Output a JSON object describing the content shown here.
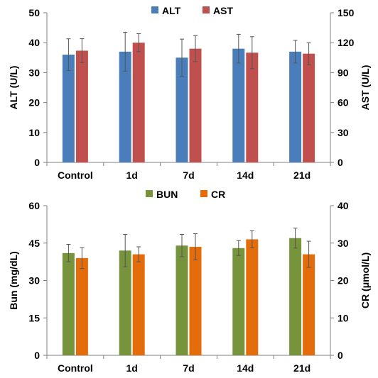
{
  "chart_data": [
    {
      "type": "bar",
      "categories": [
        "Control",
        "1d",
        "7d",
        "14d",
        "21d"
      ],
      "series": [
        {
          "name": "ALT",
          "axis": "left",
          "color": "#4a7ebb",
          "values": [
            36,
            37,
            35,
            38,
            37
          ],
          "errors": [
            5.3,
            6.5,
            6.2,
            4.8,
            3.8
          ]
        },
        {
          "name": "AST",
          "axis": "right",
          "color": "#c0504d",
          "values": [
            112,
            120,
            114,
            110,
            109
          ],
          "errors": [
            12,
            9,
            13,
            16,
            11
          ]
        }
      ],
      "ylabel": "ALT (U/L)",
      "y2label": "AST (U/L)",
      "ylim": [
        0,
        50
      ],
      "y2lim": [
        0,
        150
      ],
      "yticks": [
        0,
        10,
        20,
        30,
        40,
        50
      ],
      "y2ticks": [
        0,
        30,
        60,
        90,
        120,
        150
      ],
      "legend": "top-center"
    },
    {
      "type": "bar",
      "categories": [
        "Control",
        "1d",
        "7d",
        "14d",
        "21d"
      ],
      "series": [
        {
          "name": "BUN",
          "axis": "left",
          "color": "#77933c",
          "values": [
            41,
            42,
            44,
            43,
            47
          ],
          "errors": [
            3.5,
            6.5,
            4.5,
            3,
            4
          ]
        },
        {
          "name": "CR",
          "axis": "right",
          "color": "#e46c0a",
          "values": [
            26,
            27,
            29,
            31,
            27
          ],
          "errors": [
            2.8,
            2,
            3.5,
            2.3,
            3.5
          ]
        }
      ],
      "ylabel": "Bun (mg/dL)",
      "y2label": "CR (μmol/L)",
      "ylim": [
        0,
        60
      ],
      "y2lim": [
        0,
        40
      ],
      "yticks": [
        0,
        15,
        30,
        45,
        60
      ],
      "y2ticks": [
        0,
        10,
        20,
        30,
        40
      ],
      "legend": "top-center"
    }
  ]
}
